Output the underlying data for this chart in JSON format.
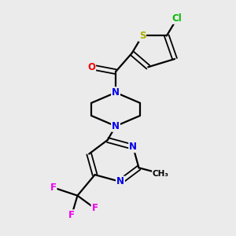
{
  "bg_color": "#ebebeb",
  "atom_colors": {
    "C": "#000000",
    "N": "#0000ee",
    "O": "#ee0000",
    "S": "#aaaa00",
    "Cl": "#00bb00",
    "F": "#ee00ee"
  },
  "bond_color": "#000000"
}
